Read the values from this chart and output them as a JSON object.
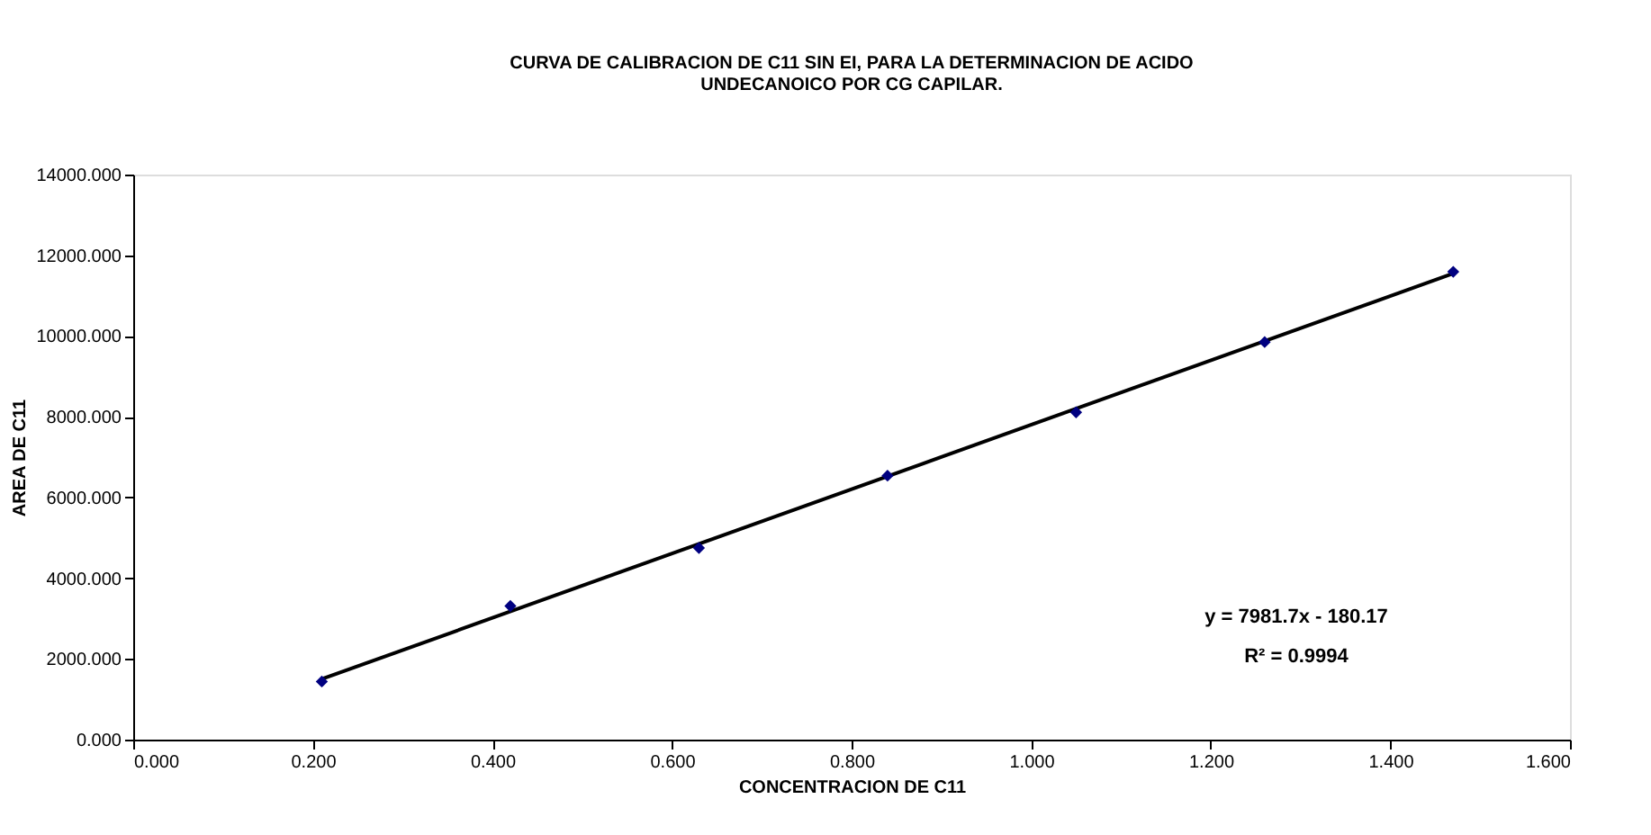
{
  "chart_data": {
    "type": "scatter",
    "title": [
      "CURVA DE CALIBRACION DE C11 SIN EI, PARA LA DETERMINACION DE ACIDO",
      "UNDECANOICO POR CG CAPILAR."
    ],
    "xlabel": "CONCENTRACION DE C11",
    "ylabel": "AREA DE C11",
    "series": [
      {
        "color": "#000080",
        "marker": "diamond",
        "x": [
          0.21,
          0.42,
          0.63,
          0.84,
          1.05,
          1.26,
          1.47
        ],
        "values": [
          1440,
          3310,
          4750,
          6540,
          8110,
          9850,
          11590
        ]
      },
      {
        "type": "line",
        "color": "#000000",
        "line_style": "solid",
        "x": [
          0.21,
          1.47
        ],
        "values": [
          1500,
          11550
        ]
      }
    ],
    "annotations": [
      "y = 7981.7x - 180.17",
      "R² = 0.9994"
    ],
    "xlim": [
      0,
      1.6
    ],
    "xticks": [
      {
        "value": 0,
        "label": "0.000"
      },
      {
        "value": 0.2,
        "label": "0.200"
      },
      {
        "value": 0.4,
        "label": "0.400"
      },
      {
        "value": 0.6,
        "label": "0.600"
      },
      {
        "value": 0.8,
        "label": "0.800"
      },
      {
        "value": 1.0,
        "label": "1.000"
      },
      {
        "value": 1.2,
        "label": "1.200"
      },
      {
        "value": 1.4,
        "label": "1.400"
      },
      {
        "value": 1.6,
        "label": "1.600"
      }
    ],
    "ylim": [
      0,
      14000
    ],
    "yticks": [
      {
        "value": 0,
        "label": "0.000"
      },
      {
        "value": 2000,
        "label": "2000.000"
      },
      {
        "value": 4000,
        "label": "4000.000"
      },
      {
        "value": 6000,
        "label": "6000.000"
      },
      {
        "value": 8000,
        "label": "8000.000"
      },
      {
        "value": 10000,
        "label": "10000.000"
      },
      {
        "value": 12000,
        "label": "12000.000"
      },
      {
        "value": 14000,
        "label": "14000.000"
      }
    ],
    "grid": false
  }
}
